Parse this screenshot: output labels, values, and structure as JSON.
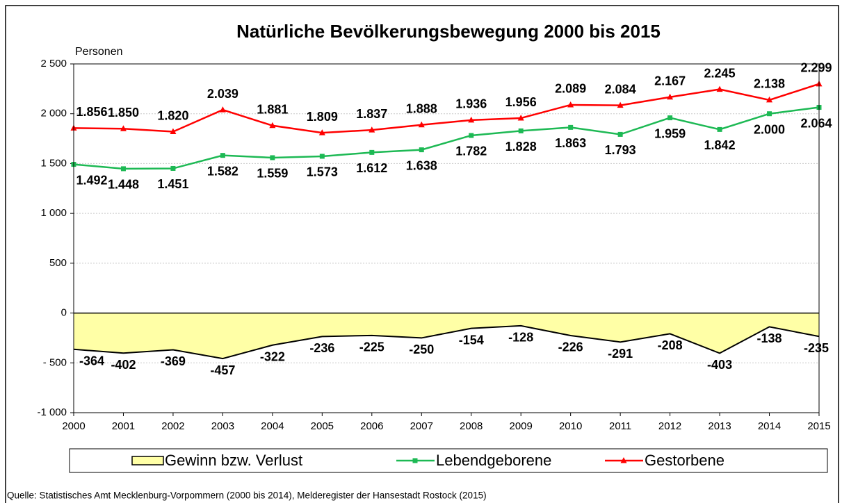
{
  "chart_data": {
    "type": "line",
    "title": "Natürliche Bevölkerungsbewegung  2000 bis 2015",
    "y_axis_label": "Personen",
    "source": "Quelle: Statistisches Amt Mecklenburg-Vorpommern (2000 bis 2014), Melderegister der Hansestadt Rostock (2015)",
    "x": [
      2000,
      2001,
      2002,
      2003,
      2004,
      2005,
      2006,
      2007,
      2008,
      2009,
      2010,
      2011,
      2012,
      2013,
      2014,
      2015
    ],
    "xlim": [
      2000,
      2015
    ],
    "xticks": [
      2000,
      2001,
      2002,
      2003,
      2004,
      2005,
      2006,
      2007,
      2008,
      2009,
      2010,
      2011,
      2012,
      2013,
      2014,
      2015
    ],
    "ylim": [
      -1000,
      2500
    ],
    "yticks": [
      {
        "value": -1000,
        "label": "-1 000"
      },
      {
        "value": -500,
        "label": "- 500"
      },
      0,
      500,
      {
        "value": 1000,
        "label": "1 000"
      },
      {
        "value": 1500,
        "label": "1 500"
      },
      {
        "value": 2000,
        "label": "2 000"
      },
      {
        "value": 2500,
        "label": "2 500"
      }
    ],
    "grid": true,
    "series": [
      {
        "name": "Gewinn bzw. Verlust",
        "type": "area",
        "color": "#ffffa6",
        "values": [
          -364,
          -402,
          -369,
          -457,
          -322,
          -236,
          -225,
          -250,
          -154,
          -128,
          -226,
          -291,
          -208,
          -403,
          -138,
          -235
        ]
      },
      {
        "name": "Lebendgeborene",
        "type": "line",
        "marker": "square",
        "color": "#1db954",
        "values": [
          1492,
          1448,
          1451,
          1582,
          1559,
          1573,
          1612,
          1638,
          1782,
          1828,
          1863,
          1793,
          1959,
          1842,
          2000,
          2064
        ],
        "value_labels": [
          "1.492",
          "1.448",
          "1.451",
          "1.582",
          "1.559",
          "1.573",
          "1.612",
          "1.638",
          "1.782",
          "1.828",
          "1.863",
          "1.793",
          "1.959",
          "1.842",
          "2.000",
          "2.064"
        ]
      },
      {
        "name": "Gestorbene",
        "type": "line",
        "marker": "triangle",
        "color": "#ff0000",
        "values": [
          1856,
          1850,
          1820,
          2039,
          1881,
          1809,
          1837,
          1888,
          1936,
          1956,
          2089,
          2084,
          2167,
          2245,
          2138,
          2299
        ],
        "value_labels": [
          "1.856",
          "1.850",
          "1.820",
          "2.039",
          "1.881",
          "1.809",
          "1.837",
          "1.888",
          "1.936",
          "1.956",
          "2.089",
          "2.084",
          "2.167",
          "2.245",
          "2.138",
          "2.299"
        ]
      }
    ]
  }
}
